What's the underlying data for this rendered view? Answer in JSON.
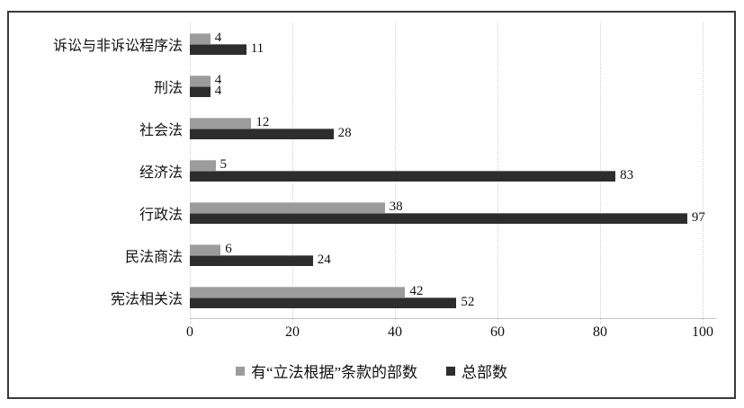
{
  "chart_data": {
    "type": "bar",
    "orientation": "horizontal",
    "title": "",
    "xlabel": "",
    "ylabel": "",
    "categories": [
      "诉讼与非诉讼程序法",
      "刑法",
      "社会法",
      "经济法",
      "行政法",
      "民法商法",
      "宪法相关法"
    ],
    "series": [
      {
        "name": "有“立法根据”条款的部数",
        "color": "#9c9c9c",
        "values": [
          4,
          4,
          12,
          5,
          38,
          6,
          42
        ]
      },
      {
        "name": "总部数",
        "color": "#2d2d2d",
        "values": [
          11,
          4,
          28,
          83,
          97,
          24,
          52
        ]
      }
    ],
    "x_ticks": [
      0,
      20,
      40,
      60,
      80,
      100
    ],
    "xlim": [
      0,
      100
    ],
    "grid": "vertical-dotted",
    "gridline_color": "#cfcfcf",
    "value_labels": true,
    "legend_position": "bottom-center",
    "frame_border_color": "#3a3a3a",
    "background_color": "#ffffff",
    "text_color": "#111111"
  }
}
